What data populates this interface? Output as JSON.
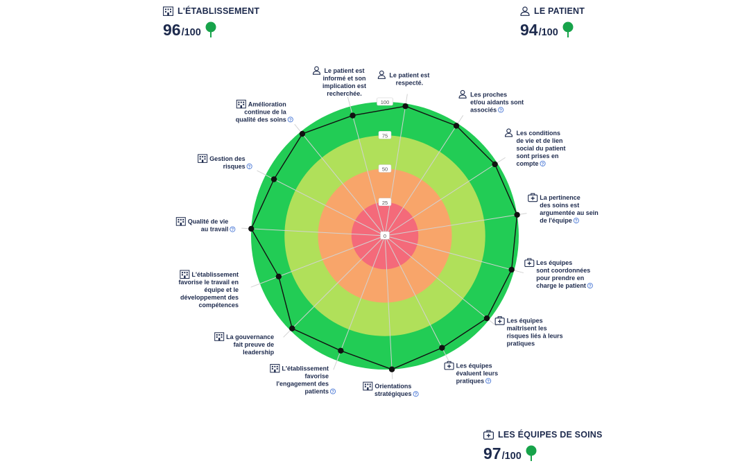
{
  "scores": {
    "etablissement": {
      "label": "L'ÉTABLISSEMENT",
      "value": "96",
      "max": "/100"
    },
    "patient": {
      "label": "LE PATIENT",
      "value": "94",
      "max": "/100"
    },
    "equipes": {
      "label": "LES ÉQUIPES DE SOINS",
      "value": "97",
      "max": "/100"
    }
  },
  "colors": {
    "ring_100": "#22cc55",
    "ring_75": "#b0e05a",
    "ring_50": "#f8a56a",
    "ring_25": "#f46a7a",
    "tree": "#17a34a",
    "text": "#1d2a4d",
    "help": "#4a78d6"
  },
  "chart_data": {
    "type": "radar",
    "rmin": 0,
    "rmax": 100,
    "ticks": [
      "0",
      "25",
      "50",
      "75",
      "100"
    ],
    "axes": [
      {
        "label": [
          "Le patient est",
          "respecté."
        ],
        "category": "patient",
        "value": 98,
        "help": false
      },
      {
        "label": [
          "Les proches",
          "et/ou aidants sont",
          "associés"
        ],
        "category": "patient",
        "value": 98,
        "help": true
      },
      {
        "label": [
          "Les conditions",
          "de vie et de lien",
          "social du patient",
          "sont prises en",
          "compte"
        ],
        "category": "patient",
        "value": 98,
        "help": true
      },
      {
        "label": [
          "La pertinence",
          "des soins est",
          "argumentée au sein",
          "de l'équipe"
        ],
        "category": "equipes",
        "value": 100,
        "help": true
      },
      {
        "label": [
          "Les équipes",
          "sont coordonnées",
          "pour prendre en",
          "charge le patient"
        ],
        "category": "equipes",
        "value": 98,
        "help": true
      },
      {
        "label": [
          "Les équipes",
          "maîtrisent les",
          "risques liés à leurs",
          "pratiques"
        ],
        "category": "equipes",
        "value": 98,
        "help": false
      },
      {
        "label": [
          "Les équipes",
          "évaluent leurs",
          "pratiques"
        ],
        "category": "equipes",
        "value": 94,
        "help": true
      },
      {
        "label": [
          "Orientations",
          "stratégiques"
        ],
        "category": "etablissement",
        "value": 100,
        "help": true
      },
      {
        "label": [
          "L'établissement",
          "favorise",
          "l'engagement des",
          "patients"
        ],
        "category": "etablissement",
        "value": 92,
        "help": true
      },
      {
        "label": [
          "La gouvernance",
          "fait preuve de",
          "leadership"
        ],
        "category": "etablissement",
        "value": 98,
        "help": false
      },
      {
        "label": [
          "L'établissement",
          "favorise le travail en",
          "équipe et le",
          "développement des",
          "compétences"
        ],
        "category": "etablissement",
        "value": 85,
        "help": false
      },
      {
        "label": [
          "Qualité de vie",
          "au travail"
        ],
        "category": "etablissement",
        "value": 100,
        "help": true
      },
      {
        "label": [
          "Gestion des",
          "risques"
        ],
        "category": "etablissement",
        "value": 93,
        "help": true
      },
      {
        "label": [
          "Amélioration",
          "continue de la",
          "qualité des soins"
        ],
        "category": "etablissement",
        "value": 98,
        "help": true
      },
      {
        "label": [
          "Le patient est",
          "informé et son",
          "implication est",
          "recherchée."
        ],
        "category": "patient",
        "value": 93,
        "help": false
      }
    ]
  }
}
